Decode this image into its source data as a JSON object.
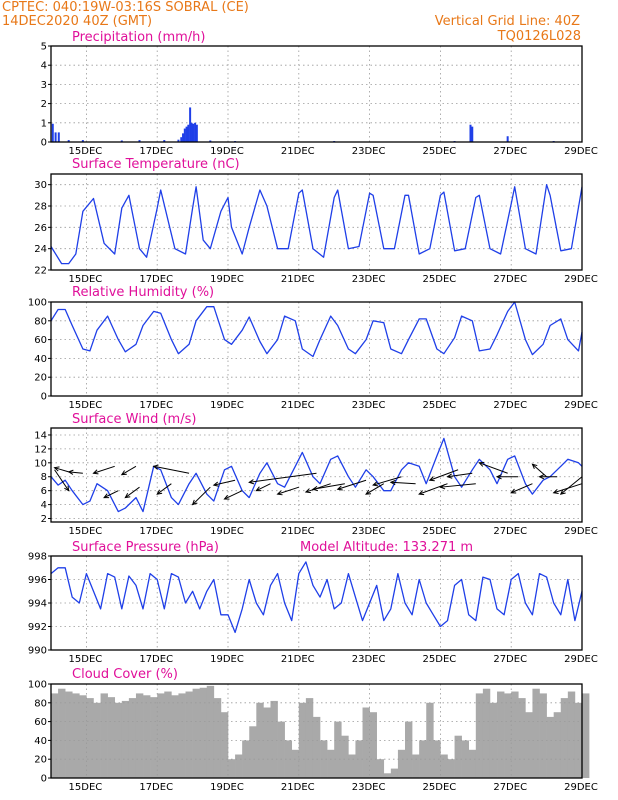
{
  "header": {
    "line1": "CPTEC:  040:19W-03:16S  SOBRAL (CE)",
    "line2": "14DEC2020 40Z (GMT)",
    "right1": "Vertical Grid Line: 40Z",
    "right2": "TQ0126L028"
  },
  "colors": {
    "series": "#1f3fe8",
    "cloud": "#a9a9a9",
    "header": "#e87818",
    "title": "#e0109a",
    "arrow": "#000000"
  },
  "x_ticks": [
    "15DEC",
    "17DEC",
    "19DEC",
    "21DEC",
    "23DEC",
    "25DEC",
    "27DEC",
    "29DEC"
  ],
  "chart_data": [
    {
      "type": "bar",
      "title": "Precipitation (mm/h)",
      "ylim": [
        0,
        5
      ],
      "yticks": [
        0,
        1,
        2,
        3,
        4,
        5
      ],
      "xlim": [
        14.0,
        29.0
      ],
      "points": [
        [
          14.05,
          0.95
        ],
        [
          14.13,
          0.5
        ],
        [
          14.22,
          0.5
        ],
        [
          14.5,
          0.1
        ],
        [
          14.9,
          0.1
        ],
        [
          16.0,
          0.08
        ],
        [
          16.5,
          0.1
        ],
        [
          17.2,
          0.1
        ],
        [
          17.6,
          0.12
        ],
        [
          17.68,
          0.25
        ],
        [
          17.73,
          0.45
        ],
        [
          17.78,
          0.7
        ],
        [
          17.83,
          0.8
        ],
        [
          17.88,
          0.9
        ],
        [
          17.93,
          1.8
        ],
        [
          17.97,
          1.0
        ],
        [
          18.02,
          0.95
        ],
        [
          18.07,
          1.0
        ],
        [
          18.12,
          0.9
        ],
        [
          18.5,
          0.08
        ],
        [
          19.2,
          0.05
        ],
        [
          22.0,
          0.05
        ],
        [
          25.4,
          0.05
        ],
        [
          25.85,
          0.9
        ],
        [
          25.9,
          0.8
        ],
        [
          26.9,
          0.3
        ],
        [
          28.2,
          0.05
        ]
      ]
    },
    {
      "type": "line",
      "title": "Surface Temperature (nC)",
      "ylim": [
        22,
        31
      ],
      "yticks": [
        22,
        24,
        26,
        28,
        30
      ],
      "x": [
        14.0,
        14.3,
        14.5,
        14.7,
        14.9,
        15.2,
        15.5,
        15.8,
        16.0,
        16.2,
        16.5,
        16.7,
        17.0,
        17.1,
        17.5,
        17.8,
        18.0,
        18.1,
        18.3,
        18.5,
        18.8,
        19.0,
        19.1,
        19.4,
        19.6,
        19.9,
        20.1,
        20.4,
        20.7,
        21.0,
        21.1,
        21.4,
        21.7,
        22.0,
        22.1,
        22.4,
        22.7,
        23.0,
        23.1,
        23.4,
        23.7,
        24.0,
        24.1,
        24.4,
        24.7,
        25.0,
        25.1,
        25.4,
        25.7,
        26.0,
        26.1,
        26.4,
        26.7,
        27.0,
        27.1,
        27.4,
        27.7,
        28.0,
        28.1,
        28.4,
        28.7,
        29.0
      ],
      "y": [
        24.2,
        22.6,
        22.6,
        23.5,
        27.5,
        28.7,
        24.5,
        23.5,
        27.8,
        29.0,
        24.0,
        23.2,
        27.8,
        29.5,
        24.0,
        23.5,
        27.8,
        29.8,
        24.8,
        24.0,
        27.5,
        28.8,
        26.0,
        23.5,
        26.0,
        29.5,
        28.0,
        24.0,
        24.0,
        29.2,
        29.5,
        24.0,
        23.2,
        28.8,
        29.5,
        24.0,
        24.2,
        29.2,
        29.0,
        24.0,
        24.0,
        29.0,
        29.0,
        23.5,
        24.0,
        29.0,
        29.3,
        23.8,
        24.0,
        28.8,
        29.0,
        24.0,
        23.5,
        28.2,
        29.8,
        24.0,
        23.5,
        30.0,
        29.0,
        23.8,
        24.0,
        29.8
      ]
    },
    {
      "type": "line",
      "title": "Relative Humidity (%)",
      "ylim": [
        0,
        100
      ],
      "yticks": [
        0,
        20,
        40,
        60,
        80,
        100
      ],
      "x": [
        14.0,
        14.2,
        14.4,
        14.6,
        14.9,
        15.1,
        15.3,
        15.6,
        15.9,
        16.1,
        16.4,
        16.6,
        16.9,
        17.1,
        17.4,
        17.6,
        17.9,
        18.1,
        18.4,
        18.6,
        18.9,
        19.1,
        19.4,
        19.6,
        19.9,
        20.1,
        20.4,
        20.6,
        20.9,
        21.1,
        21.4,
        21.6,
        21.9,
        22.1,
        22.4,
        22.6,
        22.9,
        23.1,
        23.4,
        23.6,
        23.9,
        24.1,
        24.4,
        24.6,
        24.9,
        25.1,
        25.4,
        25.6,
        25.9,
        26.1,
        26.4,
        26.6,
        26.9,
        27.1,
        27.4,
        27.6,
        27.9,
        28.1,
        28.4,
        28.6,
        28.9,
        29.0
      ],
      "y": [
        80,
        92,
        92,
        75,
        50,
        48,
        70,
        85,
        60,
        47,
        55,
        75,
        90,
        88,
        60,
        45,
        55,
        80,
        95,
        95,
        60,
        55,
        70,
        84,
        58,
        45,
        60,
        85,
        80,
        50,
        42,
        60,
        85,
        75,
        50,
        45,
        60,
        80,
        78,
        50,
        45,
        60,
        82,
        82,
        50,
        45,
        62,
        85,
        80,
        48,
        50,
        65,
        90,
        100,
        60,
        44,
        55,
        75,
        82,
        60,
        48,
        68
      ]
    },
    {
      "type": "line",
      "title": "Surface Wind (m/s)",
      "ylim": [
        1.5,
        15
      ],
      "yticks": [
        2,
        4,
        6,
        8,
        10,
        12,
        14
      ],
      "x": [
        14.0,
        14.2,
        14.4,
        14.6,
        14.9,
        15.1,
        15.3,
        15.6,
        15.9,
        16.1,
        16.4,
        16.6,
        16.9,
        17.1,
        17.4,
        17.6,
        17.9,
        18.1,
        18.4,
        18.6,
        18.9,
        19.1,
        19.4,
        19.6,
        19.9,
        20.1,
        20.4,
        20.6,
        20.9,
        21.1,
        21.4,
        21.6,
        21.9,
        22.1,
        22.4,
        22.6,
        22.9,
        23.1,
        23.4,
        23.6,
        23.9,
        24.1,
        24.4,
        24.6,
        24.9,
        25.1,
        25.4,
        25.6,
        25.9,
        26.1,
        26.4,
        26.6,
        26.9,
        27.1,
        27.4,
        27.6,
        27.9,
        28.1,
        28.4,
        28.6,
        28.9,
        29.0
      ],
      "y": [
        8,
        6.8,
        7.5,
        6,
        4,
        4.5,
        7,
        6,
        3,
        3.5,
        5,
        3,
        9.5,
        9,
        5,
        4,
        7,
        8.5,
        5.5,
        4.5,
        9,
        9.5,
        6,
        5,
        8.5,
        10,
        7,
        6.5,
        9.5,
        11.5,
        8,
        7,
        10.5,
        11,
        8,
        6.5,
        9,
        8,
        6,
        6,
        9,
        10,
        9.5,
        7,
        11,
        13.5,
        8,
        6.5,
        9,
        10.5,
        9,
        7,
        10.5,
        11,
        7,
        5.5,
        7.5,
        8,
        9.5,
        10.5,
        10,
        9.5
      ],
      "arrows": [
        [
          14.1,
          9,
          14.5,
          6
        ],
        [
          14.5,
          8.7,
          14.1,
          9.3
        ],
        [
          14.9,
          8.5,
          14.5,
          8.7
        ],
        [
          15.8,
          9.5,
          15.2,
          8.5
        ],
        [
          15.9,
          6,
          15.5,
          5
        ],
        [
          16.4,
          9.5,
          16.0,
          8.3
        ],
        [
          16.5,
          6.5,
          16.1,
          5
        ],
        [
          17.9,
          8.5,
          16.9,
          9.5
        ],
        [
          17.4,
          7,
          17.0,
          5.5
        ],
        [
          18.5,
          6.5,
          18.0,
          4
        ],
        [
          19.2,
          7.5,
          18.6,
          6.8
        ],
        [
          19.4,
          6,
          18.9,
          4.8
        ],
        [
          21.5,
          8.5,
          19.6,
          7.2
        ],
        [
          20.2,
          7,
          19.8,
          6
        ],
        [
          21.0,
          6.5,
          20.4,
          5.5
        ],
        [
          21.9,
          7,
          21.2,
          5.8
        ],
        [
          22.3,
          7,
          21.4,
          6.2
        ],
        [
          22.9,
          7.5,
          22.1,
          6.2
        ],
        [
          23.4,
          7,
          22.9,
          5.5
        ],
        [
          23.9,
          8,
          23.1,
          6.8
        ],
        [
          24.3,
          7,
          23.6,
          7.2
        ],
        [
          25.2,
          7,
          24.4,
          5.5
        ],
        [
          25.5,
          9,
          24.7,
          7.5
        ],
        [
          25.9,
          8.5,
          25.2,
          8
        ],
        [
          26.0,
          7,
          25.0,
          6.5
        ],
        [
          26.9,
          8.5,
          26.1,
          10
        ],
        [
          27.2,
          8,
          26.6,
          8
        ],
        [
          27.6,
          7,
          27.0,
          5.7
        ],
        [
          28.0,
          8,
          27.6,
          9.8
        ],
        [
          28.3,
          8,
          27.8,
          8
        ],
        [
          29.0,
          8,
          28.4,
          5.5
        ],
        [
          29.0,
          7,
          28.2,
          5.7
        ]
      ]
    },
    {
      "type": "line",
      "title": "Surface Pressure (hPa)",
      "annotation": "Model Altitude: 133.271  m",
      "ylim": [
        990,
        998
      ],
      "yticks": [
        990,
        992,
        994,
        996,
        998
      ],
      "x": [
        14.0,
        14.2,
        14.4,
        14.6,
        14.8,
        15.0,
        15.2,
        15.4,
        15.6,
        15.8,
        16.0,
        16.2,
        16.4,
        16.6,
        16.8,
        17.0,
        17.2,
        17.4,
        17.6,
        17.8,
        18.0,
        18.2,
        18.4,
        18.6,
        18.8,
        19.0,
        19.2,
        19.4,
        19.6,
        19.8,
        20.0,
        20.2,
        20.4,
        20.6,
        20.8,
        21.0,
        21.2,
        21.4,
        21.6,
        21.8,
        22.0,
        22.2,
        22.4,
        22.6,
        22.8,
        23.0,
        23.2,
        23.4,
        23.6,
        23.8,
        24.0,
        24.2,
        24.4,
        24.6,
        24.8,
        25.0,
        25.2,
        25.4,
        25.6,
        25.8,
        26.0,
        26.2,
        26.4,
        26.6,
        26.8,
        27.0,
        27.2,
        27.4,
        27.6,
        27.8,
        28.0,
        28.2,
        28.4,
        28.6,
        28.8,
        29.0
      ],
      "y": [
        996.5,
        997.0,
        997.0,
        994.5,
        994.0,
        996.5,
        995.0,
        993.5,
        996.5,
        996.2,
        993.5,
        996.3,
        995.5,
        993.5,
        996.5,
        996.0,
        993.5,
        996.5,
        996.2,
        994.0,
        995.0,
        993.5,
        995.0,
        996.0,
        993.0,
        993.0,
        991.5,
        993.5,
        996.0,
        994.0,
        993.0,
        995.5,
        996.5,
        994.0,
        992.5,
        996.5,
        997.5,
        995.5,
        994.5,
        996.0,
        993.5,
        994.0,
        996.5,
        994.5,
        992.5,
        994.0,
        995.5,
        992.5,
        993.5,
        996.5,
        994.0,
        993.0,
        996.0,
        994.0,
        993.0,
        992.0,
        992.5,
        995.5,
        996.0,
        993.0,
        992.5,
        996.2,
        996.0,
        993.5,
        993.0,
        996.0,
        996.5,
        994.0,
        993.0,
        996.5,
        996.2,
        994.0,
        993.0,
        996.0,
        992.5,
        995.0
      ]
    },
    {
      "type": "bar",
      "title": "Cloud Cover (%)",
      "ylim": [
        0,
        100
      ],
      "yticks": [
        0,
        20,
        40,
        60,
        80,
        100
      ],
      "xlim": [
        14.0,
        29.0
      ],
      "x": [
        14.0,
        14.2,
        14.4,
        14.6,
        14.8,
        15.0,
        15.2,
        15.4,
        15.6,
        15.8,
        16.0,
        16.2,
        16.4,
        16.6,
        16.8,
        17.0,
        17.2,
        17.4,
        17.6,
        17.8,
        18.0,
        18.2,
        18.4,
        18.6,
        18.8,
        19.0,
        19.2,
        19.4,
        19.6,
        19.8,
        20.0,
        20.2,
        20.4,
        20.6,
        20.8,
        21.0,
        21.2,
        21.4,
        21.6,
        21.8,
        22.0,
        22.2,
        22.4,
        22.6,
        22.8,
        23.0,
        23.2,
        23.4,
        23.6,
        23.8,
        24.0,
        24.2,
        24.4,
        24.6,
        24.8,
        25.0,
        25.2,
        25.4,
        25.6,
        25.8,
        26.0,
        26.2,
        26.4,
        26.6,
        26.8,
        27.0,
        27.2,
        27.4,
        27.6,
        27.8,
        28.0,
        28.2,
        28.4,
        28.6,
        28.8,
        29.0
      ],
      "y": [
        90,
        95,
        92,
        90,
        88,
        85,
        80,
        90,
        86,
        80,
        82,
        85,
        90,
        88,
        86,
        90,
        92,
        88,
        90,
        92,
        95,
        96,
        98,
        85,
        70,
        20,
        25,
        40,
        55,
        80,
        75,
        82,
        60,
        40,
        30,
        80,
        85,
        65,
        40,
        30,
        60,
        45,
        25,
        40,
        75,
        70,
        20,
        5,
        10,
        30,
        60,
        25,
        40,
        80,
        40,
        25,
        20,
        45,
        40,
        30,
        90,
        95,
        80,
        92,
        90,
        92,
        85,
        70,
        95,
        90,
        65,
        70,
        85,
        92,
        80,
        90
      ]
    }
  ]
}
